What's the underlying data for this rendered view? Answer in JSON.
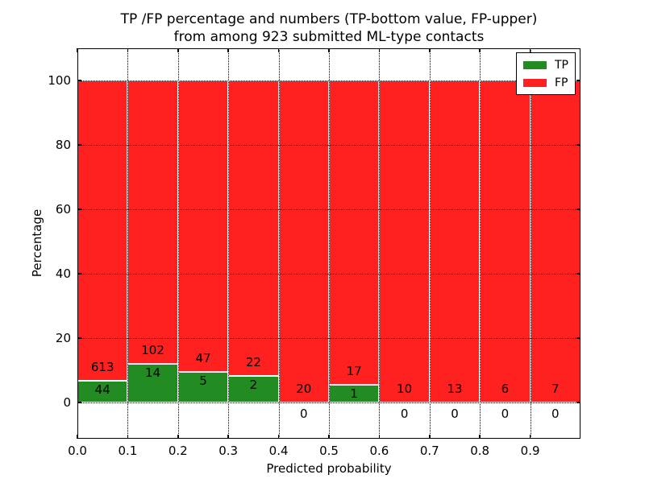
{
  "title": {
    "line1": "TP /FP percentage and numbers (TP-bottom value, FP-upper)",
    "line2": "from among 923 submitted ML-type contacts"
  },
  "axes": {
    "xlabel": "Predicted probability",
    "ylabel": "Percentage"
  },
  "chart_data": {
    "type": "bar",
    "stacked": true,
    "title": "TP /FP percentage and numbers (TP-bottom value, FP-upper)\nfrom among 923 submitted ML-type contacts",
    "xlabel": "Predicted probability",
    "ylabel": "Percentage",
    "total_contacts": 923,
    "bin_edges": [
      0.0,
      0.1,
      0.2,
      0.3,
      0.4,
      0.5,
      0.6,
      0.7,
      0.8,
      0.9,
      1.0
    ],
    "x_tick_labels": [
      "0.0",
      "0.1",
      "0.2",
      "0.3",
      "0.4",
      "0.5",
      "0.6",
      "0.7",
      "0.8",
      "0.9"
    ],
    "y_ticks": [
      0,
      20,
      40,
      60,
      80,
      100
    ],
    "y_tick_labels": [
      "0",
      "20",
      "40",
      "60",
      "80",
      "100"
    ],
    "xlim": [
      0.0,
      1.0
    ],
    "ylim": [
      -11.25,
      110
    ],
    "grid": true,
    "grid_style": "dotted",
    "bar_edge_color": "#ffffff",
    "series": [
      {
        "name": "TP",
        "color": "#228b22",
        "counts": [
          44,
          14,
          5,
          2,
          0,
          1,
          0,
          0,
          0,
          0
        ],
        "percentages": [
          6.7,
          12.07,
          9.62,
          8.33,
          0,
          5.56,
          0,
          0,
          0,
          0
        ]
      },
      {
        "name": "FP",
        "color": "#ff2020",
        "counts": [
          613,
          102,
          47,
          22,
          20,
          17,
          10,
          13,
          6,
          7
        ],
        "percentages": [
          93.3,
          87.93,
          90.38,
          91.67,
          100,
          94.44,
          100,
          100,
          100,
          100
        ]
      }
    ],
    "legend": {
      "position": "upper right",
      "entries": [
        {
          "label": "TP",
          "color": "#228b22"
        },
        {
          "label": "FP",
          "color": "#ff2020"
        }
      ]
    }
  }
}
